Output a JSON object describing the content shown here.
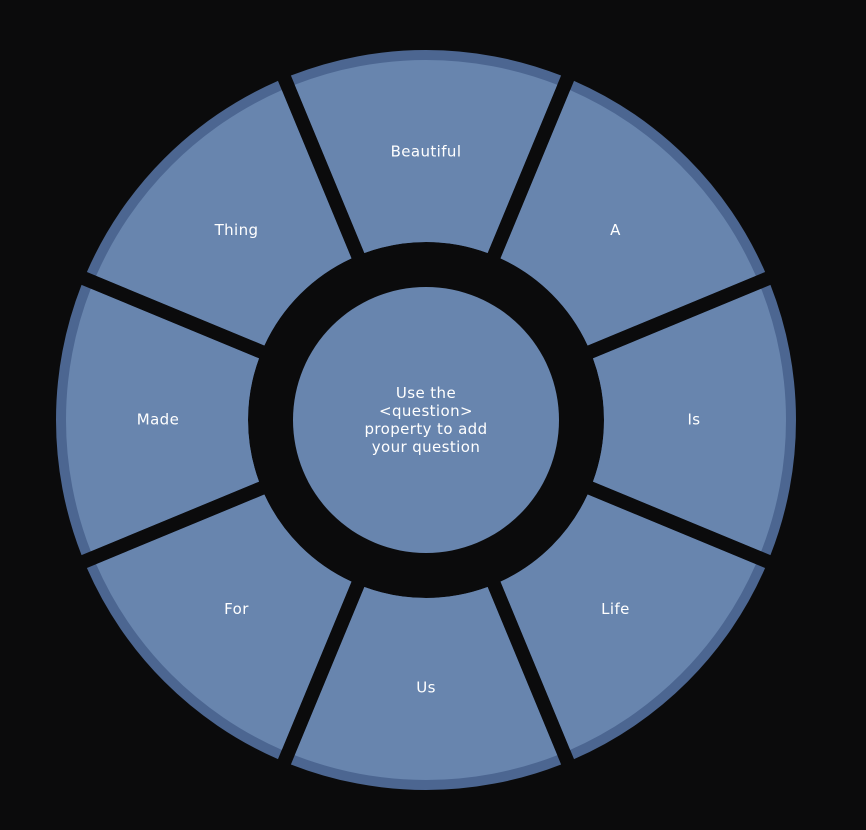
{
  "wheel": {
    "segments": [
      {
        "label": "Beautiful"
      },
      {
        "label": "A"
      },
      {
        "label": "Is"
      },
      {
        "label": "Life"
      },
      {
        "label": "Us"
      },
      {
        "label": "For"
      },
      {
        "label": "Made"
      },
      {
        "label": "Thing"
      }
    ],
    "center_text": "Use the <question> property to add your question"
  },
  "colors": {
    "background": "#0b0b0c",
    "segment_fill": "#6885ae",
    "segment_rim": "#4c6691",
    "text": "#ffffff"
  }
}
